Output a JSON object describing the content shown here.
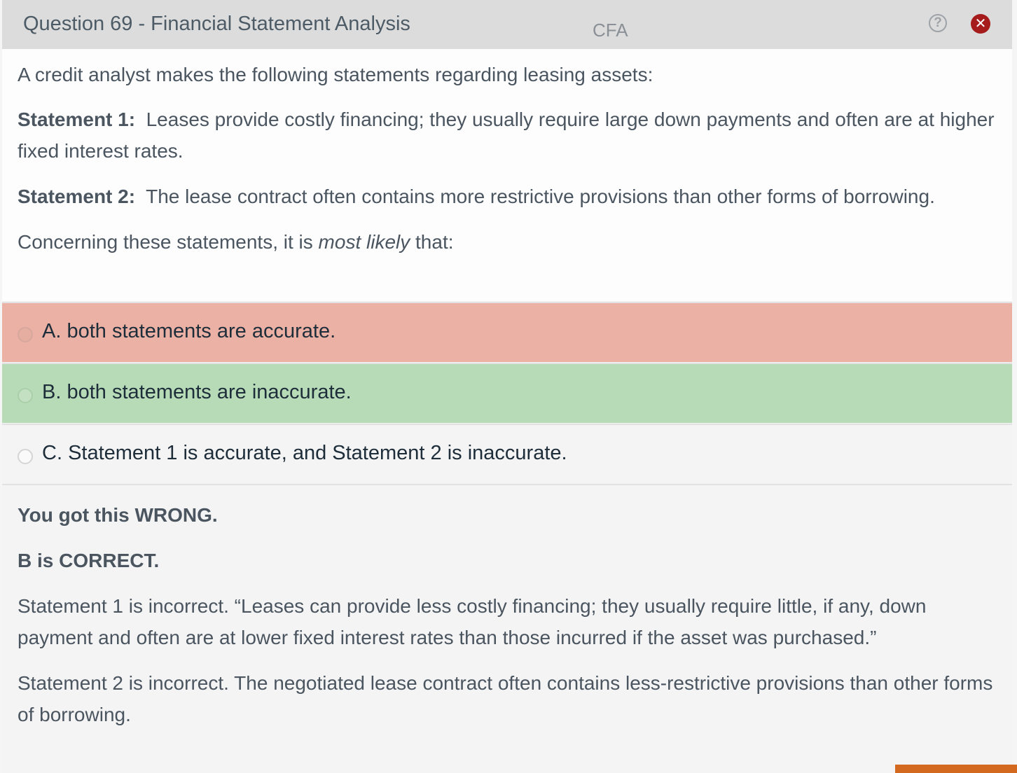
{
  "window": {
    "title": "Question 69 - Financial Statement Analysis",
    "watermark": "CFA",
    "help_glyph": "?",
    "close_glyph": "✕",
    "help_icon": "question-circle-icon",
    "close_icon": "close-circle-icon"
  },
  "question": {
    "intro": "A credit analyst makes the following statements regarding leasing assets:",
    "statement1_label": "Statement 1:",
    "statement1_text": "Leases provide costly financing; they usually require large down payments and often are at higher fixed interest rates.",
    "statement2_label": "Statement 2:",
    "statement2_text": "The lease contract often contains more restrictive provisions than other forms of borrowing.",
    "prompt_before": "Concerning these statements, it is ",
    "prompt_emphasis": "most likely",
    "prompt_after": " that:"
  },
  "options": [
    {
      "letter": "A.",
      "text": "both statements are accurate.",
      "state": "selected-wrong",
      "color": "#ebb1a5"
    },
    {
      "letter": "B.",
      "text": "both statements are inaccurate.",
      "state": "correct",
      "color": "#b8dbb7"
    },
    {
      "letter": "C.",
      "text": "Statement 1 is accurate, and Statement 2 is inaccurate.",
      "state": "neutral",
      "color": "#f4f4f4"
    }
  ],
  "explanation": {
    "result": "You got this WRONG.",
    "correct_answer": "B is CORRECT.",
    "para1": "Statement 1 is incorrect.  “Leases can provide less costly financing; they usually require little, if any, down payment and often are at lower fixed interest rates than those incurred if the asset was purchased.”",
    "para2": "Statement 2 is incorrect.  The negotiated lease contract often contains less-restrictive provisions than other forms of borrowing."
  },
  "colors": {
    "titlebar": "#dcdcdc",
    "close": "#a61c1c",
    "accent_button": "#d2691e"
  }
}
